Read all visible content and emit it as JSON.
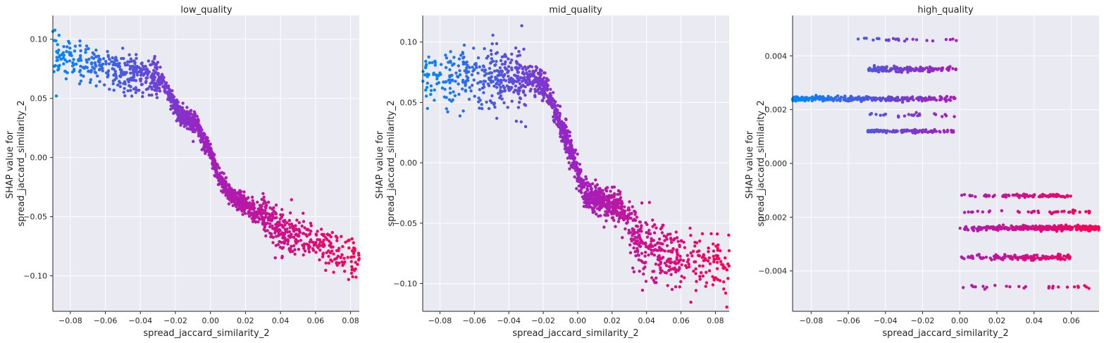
{
  "chart_data": [
    {
      "type": "scatter",
      "title": "low_quality",
      "xlabel": "spread_jaccard_similarity_2",
      "ylabel_lines": [
        "SHAP value for",
        "spread_jaccard_similarity_2"
      ],
      "xlim": [
        -0.09,
        0.085
      ],
      "ylim": [
        -0.13,
        0.12
      ],
      "xticks": [
        -0.08,
        -0.06,
        -0.04,
        -0.02,
        0.0,
        0.02,
        0.04,
        0.06,
        0.08
      ],
      "xtick_labels": [
        "−0.08",
        "−0.06",
        "−0.04",
        "−0.02",
        "0.00",
        "0.02",
        "0.04",
        "0.06",
        "0.08"
      ],
      "yticks": [
        0.1,
        0.05,
        0.0,
        -0.05,
        -0.1
      ],
      "ytick_labels": [
        "0.10",
        "0.05",
        "0.00",
        "−0.05",
        "−0.10"
      ],
      "grid": true,
      "trend": [
        [
          -0.09,
          0.088
        ],
        [
          -0.06,
          0.076
        ],
        [
          -0.04,
          0.07
        ],
        [
          -0.027,
          0.065
        ],
        [
          -0.022,
          0.047
        ],
        [
          -0.015,
          0.032
        ],
        [
          -0.008,
          0.03
        ],
        [
          -0.005,
          0.018
        ],
        [
          0.0,
          0.005
        ],
        [
          0.003,
          -0.01
        ],
        [
          0.01,
          -0.03
        ],
        [
          0.02,
          -0.04
        ],
        [
          0.03,
          -0.048
        ],
        [
          0.04,
          -0.062
        ],
        [
          0.06,
          -0.07
        ],
        [
          0.085,
          -0.09
        ]
      ],
      "spread": 0.007,
      "point_count": 1500
    },
    {
      "type": "scatter",
      "title": "mid_quality",
      "xlabel": "spread_jaccard_similarity_2",
      "ylabel_lines": [
        "SHAP value for",
        "spread_jaccard_similarity_2"
      ],
      "xlim": [
        -0.09,
        0.088
      ],
      "ylim": [
        -0.123,
        0.122
      ],
      "xticks": [
        -0.08,
        -0.06,
        -0.04,
        -0.02,
        0.0,
        0.02,
        0.04,
        0.06,
        0.08
      ],
      "xtick_labels": [
        "−0.08",
        "−0.06",
        "−0.04",
        "−0.02",
        "0.00",
        "0.02",
        "0.04",
        "0.06",
        "0.08"
      ],
      "yticks": [
        0.1,
        0.05,
        0.0,
        -0.05,
        -0.1
      ],
      "ytick_labels": [
        "0.10",
        "0.05",
        "0.00",
        "−0.05",
        "−0.10"
      ],
      "grid": true,
      "trend": [
        [
          -0.09,
          0.07
        ],
        [
          -0.06,
          0.07
        ],
        [
          -0.03,
          0.07
        ],
        [
          -0.02,
          0.066
        ],
        [
          -0.012,
          0.04
        ],
        [
          -0.007,
          0.02
        ],
        [
          -0.003,
          0.005
        ],
        [
          0.0,
          -0.01
        ],
        [
          0.005,
          -0.028
        ],
        [
          0.015,
          -0.032
        ],
        [
          0.025,
          -0.038
        ],
        [
          0.03,
          -0.05
        ],
        [
          0.035,
          -0.065
        ],
        [
          0.05,
          -0.075
        ],
        [
          0.088,
          -0.085
        ]
      ],
      "spread": 0.01,
      "point_count": 1500
    },
    {
      "type": "scatter",
      "title": "high_quality",
      "xlabel": "spread_jaccard_similarity_2",
      "ylabel_lines": [
        "SHAP value for",
        "spread_jaccard_similarity_2"
      ],
      "xlim": [
        -0.09,
        0.075
      ],
      "ylim": [
        -0.0055,
        0.0055
      ],
      "xticks": [
        -0.08,
        -0.06,
        -0.04,
        -0.02,
        0.0,
        0.02,
        0.04,
        0.06
      ],
      "xtick_labels": [
        "−0.08",
        "−0.06",
        "−0.04",
        "−0.02",
        "0.00",
        "0.02",
        "0.04",
        "0.06"
      ],
      "yticks": [
        0.004,
        0.002,
        0.0,
        -0.002,
        -0.004
      ],
      "ytick_labels": [
        "0.004",
        "0.002",
        "0.000",
        "−0.002",
        "−0.004"
      ],
      "grid": true,
      "bands": [
        {
          "x_range": [
            -0.09,
            0.0
          ],
          "y": 0.0024,
          "density": 1.0,
          "spread": 4e-05
        },
        {
          "x_range": [
            -0.05,
            0.0
          ],
          "y": 0.0035,
          "density": 0.45,
          "spread": 5e-05
        },
        {
          "x_range": [
            -0.05,
            0.0
          ],
          "y": 0.0012,
          "density": 0.3,
          "spread": 3e-05
        },
        {
          "x_range": [
            -0.055,
            0.0
          ],
          "y": 0.0046,
          "density": 0.08,
          "spread": 3e-05
        },
        {
          "x_range": [
            -0.055,
            0.0
          ],
          "y": 0.0018,
          "density": 0.08,
          "spread": 3e-05
        },
        {
          "x_range": [
            0.0,
            0.075
          ],
          "y": -0.0024,
          "density": 1.0,
          "spread": 4e-05
        },
        {
          "x_range": [
            0.0,
            0.06
          ],
          "y": -0.0035,
          "density": 0.45,
          "spread": 5e-05
        },
        {
          "x_range": [
            0.0,
            0.06
          ],
          "y": -0.0012,
          "density": 0.3,
          "spread": 3e-05
        },
        {
          "x_range": [
            0.0,
            0.07
          ],
          "y": -0.0018,
          "density": 0.12,
          "spread": 3e-05
        },
        {
          "x_range": [
            0.0,
            0.07
          ],
          "y": -0.0046,
          "density": 0.08,
          "spread": 3e-05
        }
      ],
      "point_count": 900
    }
  ],
  "colors": {
    "background": "#eaeaf2",
    "grid": "#ffffff",
    "axis": "#262626",
    "low_value": "#008afb",
    "mid_value": "#a020c0",
    "high_value": "#ff0052"
  }
}
